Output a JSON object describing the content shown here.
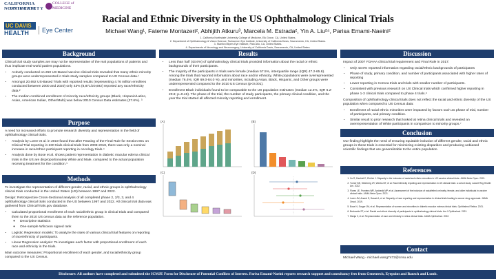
{
  "header": {
    "cnu_name": "CALIFORNIA NORTHSTATE",
    "cnu_university": "UNIVERSITY",
    "cnu_college": "COLLEGE of MEDICINE",
    "ucd_name": "UC DAVIS",
    "ucd_health": "HEALTH",
    "ucd_eye": "Eye Center",
    "title": "Racial and Ethnic Diversity in the US Ophthalmology Clinical Trials",
    "authors": "Michael Wang¹, Fateme Montazeri², Abhijith Atkuru³, Marcela M. Estrada², Yin A. Liu²⁴, Parisa Emami-Naeini²",
    "affiliations": [
      "1. California Northstate University College of Medicine, Elk Grove, CA, United States.",
      "2. Department of Ophthalmology & Vision Science, Tschannen Eye Institute, University of California Davis, Sacramento, CA, United States.",
      "3. Stanford Byers Eye Institute, Palo Alto, CA, United States.",
      "4. Departments of Neurology and Neurosurgery, University of California Davis, Sacramento, CA, United States."
    ]
  },
  "background": {
    "heading": "Background",
    "intro": "Clinical trial study samples are may not be representative of the real populations of patients and thus implicate real-world patient populations.",
    "bullets": [
      "Actively conducted on 250 US-Based vaccine clinical trials revealed that many ethnic minority groups were underrepresented in trials study samples compared to US Census data.¹",
      "Amongst 20,692 US-Based Trials with reported results (representing 4.76 million enrollees conducted between 2000 and 2020) only 43% (8,871/20,692) reported any race/ethnicity data.²",
      "The median combined enrollment of minority race/ethnicity groups (Black, Hispanic/Latino, Asian, American Indian, Other/Multi) was below 2010 Census Data estimates (27.6%). ³"
    ]
  },
  "purpose": {
    "heading": "Purpose",
    "intro": "A need for increased efforts to promote research diversity and representation in the field of ophthalmology clinical trials.",
    "bullets": [
      "Analysis by Loree et al. in 2019 found that after Passing of the Final Rule for Section 801 on Clinical Trial reporting in 230 trials clinical trials from 2008-2018, there was only a nominal increase in race/ethnic participant reporting in oncology trials.⁴",
      "Analysis done by Bose et al. shows patient representation in diabetic macular edema clinical trials in the US are disproportionately White and Male, compared to the actual population receiving treatment for the condition.⁵"
    ]
  },
  "methods": {
    "heading": "Methods",
    "intro": "To investigate the representation of different gender, racial, and ethnic groups in ophthalmology clinical trials conducted in the United States (US) between 1997 and 2022.",
    "design": "Design: Retrospective Cross-Sectional analysis of all completed phase 2, 2/3, 3, and 4 ophthalmology clinical trials conducted in the US between 1997 and 2022. All clinical trial data was gathered from ClinicalTrials.gov database.",
    "bullets": [
      "Calculated proportional enrollment of each racial/ethnic group in clinical trials and compared them to the 2010 US census data as the reference population.",
      "Logistic Regression models: To analyze the rates of various clinical trial features on reporting of race/ethnicity of participants.",
      "Linear Regression analysis: To investigate each factor with proportional enrollment of each race and ethnicity in the trials."
    ],
    "sub_bullets": [
      "Descriptive statistics",
      "One-sample Wilcoxon signed rank"
    ],
    "outcome": "Main outcome measures: Proportional enrollment of each gender, and racial/ethnicity group compared to the US Census."
  },
  "results": {
    "heading": "Results",
    "bullets": [
      "Less than half (43.6%) of ophthalmology clinical trials provided information about the racial or ethnic backgrounds of their participants.",
      "The majority of the participants in trials were female (median 57.5%, interquartile range (IQR) 47.2-65.8). Among the trials that reported information about race and/or ethnicity, White populations were overrepresented (median 76.4%; IQR 69.0-84.0 %), and minorities, including Asian, Black, Hispanic, and Other groups were underrepresented compared to the 2010 US Census (p<0.001).",
      "Enrollment Black individuals found to be comparable to the US population estimates (median 12.4%, IQR 6.2-20.8; p=0.46). The phase of the trial, the number of study participants, the primary clinical condition, and the year the trial started all affected minority reporting and enrollment."
    ],
    "figure_labels": [
      "(A)",
      "(B)",
      "(C)",
      "(D)"
    ]
  },
  "discussion": {
    "heading": "Discussion",
    "intro": "Impact of 2007 FDAAA clinical trial requirement and Final Rule in 2017:",
    "bullets": [
      "Only 43.6% reported information regarding racial/ethnic backgrounds of participants",
      "Phase of study, primary condition, and number of participants associated with higher rates of reporting",
      "Lower reporting in Cornea trials and trials with smaller number of participants.",
      "Consistent with previous research on US Clinical trials which confirmed higher reporting in phase 1-3 clinical trials compared to phase 4 trials.⁶"
    ],
    "compare": "Composition of ophthalmology clinical trials does not reflect the racial and ethnic diversity of the US population when compared to US Census data:",
    "bullets2": [
      "Enrollment of racial ethnic minorities were impacted by factors such as phase of trial, number of participants, and primary condition.",
      "Similar result to prior research that looked at retina clinical trials and revealed an overrepresentation of White participants in comparison to minority groups.⁷"
    ]
  },
  "conclusion": {
    "heading": "Conclusion",
    "text": "Our finding highlight the need of ensuring equitable inclusion of different gender, racial and ethnic groups in these trials is essential for minimizing existing disparities and producing unbiased scientific findings that are generalizable to the entire population."
  },
  "references": {
    "heading": "References",
    "items": [
      "Xu R, Dashiel E, Ehrlich J. Disparity in the inclusion of racial and ethnic minorities in US vaccine clinical trials. JAMA Netw Open. 2021.",
      "Turner BE, Steinberg JR, Weeks BT, et al. Race/ethnicity reporting and representation in US clinical trials: a cohort study. Lancet Reg Health Am. 2022.",
      "Flores LE, Frontera WR, Andrasik MP, et al. Assessment of the inclusion of racial/ethnic minority, female, and older individuals in vaccine clinical trials. JAMA Netw Open. 2021.",
      "Loree JM, Anand S, Dasari A, et al. Disparity of race reporting and representation in clinical trials leading to cancer drug approvals. JAMA Oncol. 2019.",
      "Bose N, Sorger JM, et al. Representation of women and minorities in diabetic macular edema clinical trials. Ophthalmol Retina. 2021.",
      "Berkowitz ST, et al. Racial and ethnic diversity of participants in ophthalmology clinical trials. Am J Ophthalmol. 2021.",
      "Manja V, et al. Representation of race and ethnicity in retina clinical trials. JAMA Ophthalmol. 2022."
    ]
  },
  "contact": {
    "heading": "Contact",
    "text": "Michael Wang  -  michael.wang7472@cnsu.edu"
  },
  "footer": "Disclosure: All authors have completed and submitted the ICMJE Form for Disclosure of Potential Conflicts of Interest. Parisa Emami-Naeini reports research support and consultancy fees from Genentech, Eyepoint and Bausch and Lomb."
}
